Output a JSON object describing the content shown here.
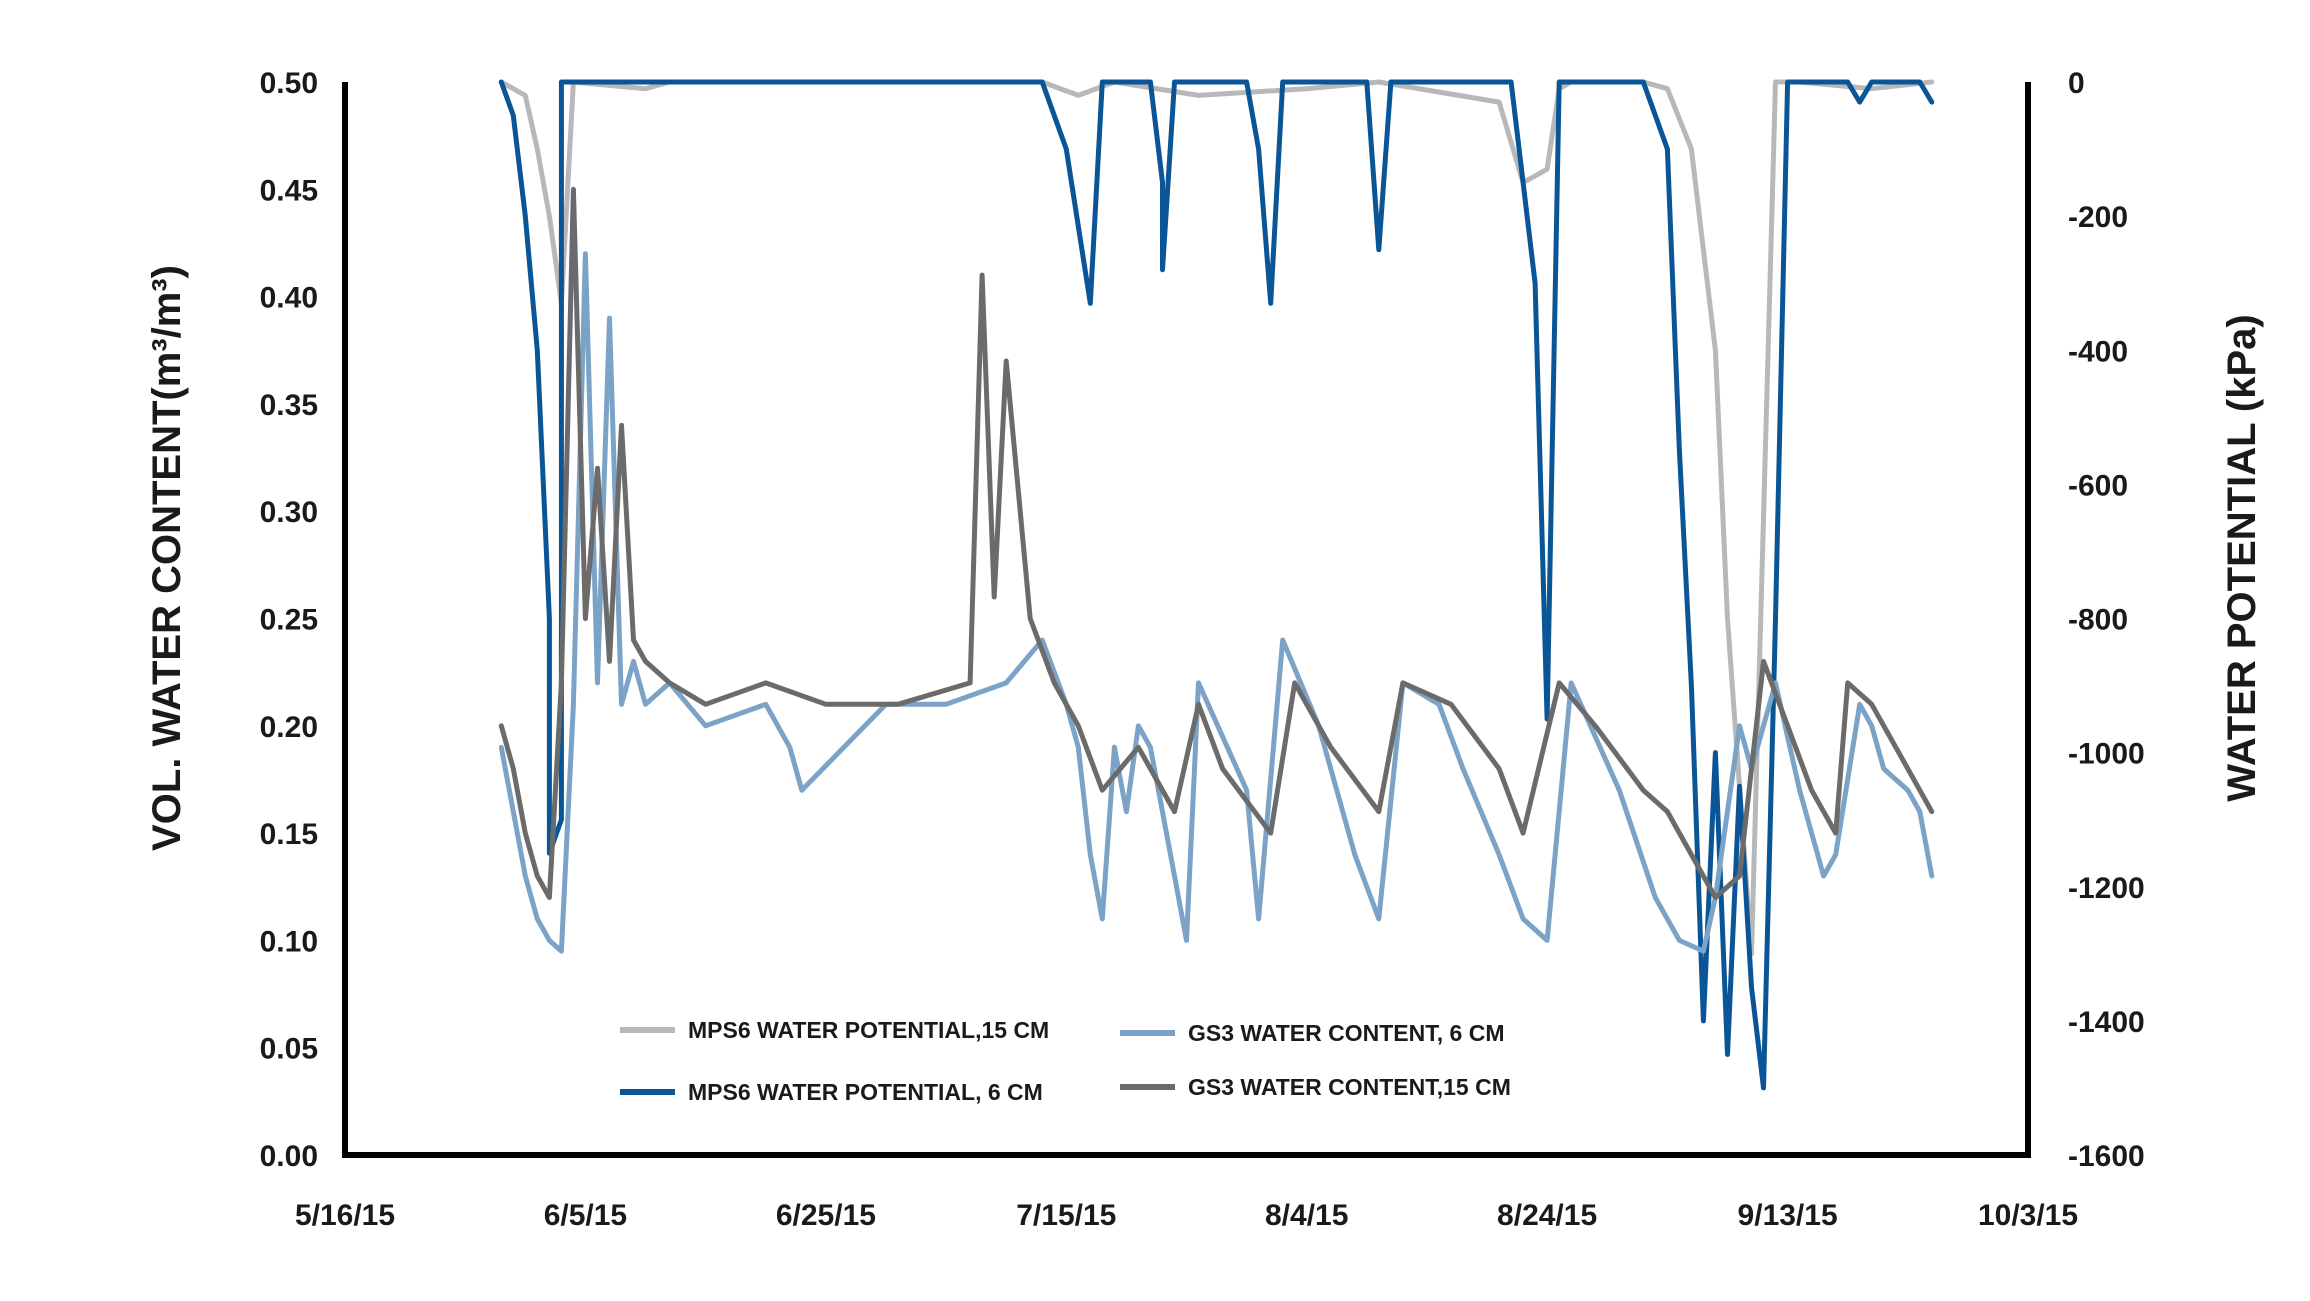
{
  "chart_data": {
    "type": "line",
    "xlabel": "",
    "ylabel": "VOL. WATER CONTENT(m³/m³)",
    "y2label": "WATER POTENTIAL (kPa)",
    "x_ticks": [
      "5/16/15",
      "6/5/15",
      "6/25/15",
      "7/15/15",
      "8/4/15",
      "8/24/15",
      "9/13/15",
      "10/3/15"
    ],
    "xlim": [
      "2015-05-16",
      "2015-10-03"
    ],
    "y_ticks": [
      "0.00",
      "0.05",
      "0.10",
      "0.15",
      "0.20",
      "0.25",
      "0.30",
      "0.35",
      "0.40",
      "0.45",
      "0.50"
    ],
    "ylim": [
      0,
      0.5
    ],
    "y2_ticks": [
      "0",
      "-200",
      "-400",
      "-600",
      "-800",
      "-1000",
      "-1200",
      "-1400",
      "-1600"
    ],
    "y2lim": [
      -1600,
      0
    ],
    "grid": false,
    "legend_position": "bottom-left",
    "series": [
      {
        "name": "MPS6 WATER POTENTIAL,15 CM",
        "axis": "right",
        "color": "#b8b8b8",
        "x": [
          "2015-05-29",
          "2015-05-31",
          "2015-06-01",
          "2015-06-02",
          "2015-06-03",
          "2015-06-04",
          "2015-06-10",
          "2015-06-12",
          "2015-07-13",
          "2015-07-16",
          "2015-07-19",
          "2015-07-26",
          "2015-08-04",
          "2015-08-10",
          "2015-08-20",
          "2015-08-22",
          "2015-08-24",
          "2015-08-25",
          "2015-08-26",
          "2015-09-01",
          "2015-09-03",
          "2015-09-05",
          "2015-09-07",
          "2015-09-08",
          "2015-09-10",
          "2015-09-12",
          "2015-09-14",
          "2015-09-20",
          "2015-09-25"
        ],
        "y": [
          0,
          -20,
          -100,
          -200,
          -330,
          0,
          -10,
          0,
          0,
          -20,
          0,
          -20,
          -10,
          0,
          -30,
          -150,
          -130,
          -10,
          0,
          0,
          -10,
          -100,
          -400,
          -800,
          -1300,
          0,
          0,
          -10,
          0
        ]
      },
      {
        "name": "MPS6 WATER POTENTIAL, 6 CM",
        "axis": "right",
        "color": "#0a5596",
        "x": [
          "2015-05-29",
          "2015-05-30",
          "2015-05-31",
          "2015-06-01",
          "2015-06-02",
          "2015-06-02",
          "2015-06-03",
          "2015-06-03",
          "2015-06-04",
          "2015-07-13",
          "2015-07-15",
          "2015-07-17",
          "2015-07-18",
          "2015-07-22",
          "2015-07-23",
          "2015-07-23",
          "2015-07-24",
          "2015-07-30",
          "2015-07-31",
          "2015-08-01",
          "2015-08-02",
          "2015-08-09",
          "2015-08-10",
          "2015-08-11",
          "2015-08-21",
          "2015-08-23",
          "2015-08-24",
          "2015-08-25",
          "2015-09-01",
          "2015-09-03",
          "2015-09-04",
          "2015-09-05",
          "2015-09-06",
          "2015-09-07",
          "2015-09-08",
          "2015-09-09",
          "2015-09-10",
          "2015-09-11",
          "2015-09-12",
          "2015-09-13",
          "2015-09-14",
          "2015-09-15",
          "2015-09-16",
          "2015-09-18",
          "2015-09-19",
          "2015-09-20",
          "2015-09-24",
          "2015-09-25"
        ],
        "y": [
          0,
          -50,
          -200,
          -400,
          -800,
          -1150,
          -1100,
          0,
          0,
          0,
          -100,
          -330,
          0,
          0,
          -150,
          -280,
          0,
          0,
          -100,
          -330,
          0,
          0,
          -250,
          0,
          0,
          -300,
          -950,
          0,
          0,
          -100,
          -550,
          -900,
          -1400,
          -1000,
          -1450,
          -1050,
          -1350,
          -1500,
          -800,
          0,
          0,
          0,
          0,
          0,
          -30,
          0,
          0,
          -30
        ]
      },
      {
        "name": "GS3 WATER CONTENT, 6 CM",
        "axis": "left",
        "color": "#7ba3c7",
        "x": [
          "2015-05-29",
          "2015-05-30",
          "2015-05-31",
          "2015-06-01",
          "2015-06-02",
          "2015-06-03",
          "2015-06-04",
          "2015-06-05",
          "2015-06-06",
          "2015-06-07",
          "2015-06-08",
          "2015-06-09",
          "2015-06-10",
          "2015-06-12",
          "2015-06-15",
          "2015-06-20",
          "2015-06-22",
          "2015-06-23",
          "2015-06-30",
          "2015-07-05",
          "2015-07-10",
          "2015-07-13",
          "2015-07-15",
          "2015-07-16",
          "2015-07-17",
          "2015-07-18",
          "2015-07-19",
          "2015-07-20",
          "2015-07-21",
          "2015-07-22",
          "2015-07-24",
          "2015-07-25",
          "2015-07-26",
          "2015-07-30",
          "2015-07-31",
          "2015-08-02",
          "2015-08-05",
          "2015-08-08",
          "2015-08-10",
          "2015-08-12",
          "2015-08-15",
          "2015-08-17",
          "2015-08-20",
          "2015-08-22",
          "2015-08-24",
          "2015-08-26",
          "2015-08-30",
          "2015-09-02",
          "2015-09-04",
          "2015-09-06",
          "2015-09-07",
          "2015-09-09",
          "2015-09-10",
          "2015-09-12",
          "2015-09-14",
          "2015-09-16",
          "2015-09-17",
          "2015-09-19",
          "2015-09-20",
          "2015-09-21",
          "2015-09-23",
          "2015-09-24",
          "2015-09-25"
        ],
        "y": [
          0.19,
          0.16,
          0.13,
          0.11,
          0.1,
          0.095,
          0.21,
          0.42,
          0.22,
          0.39,
          0.21,
          0.23,
          0.21,
          0.22,
          0.2,
          0.21,
          0.19,
          0.17,
          0.21,
          0.21,
          0.22,
          0.24,
          0.21,
          0.19,
          0.14,
          0.11,
          0.19,
          0.16,
          0.2,
          0.19,
          0.13,
          0.1,
          0.22,
          0.17,
          0.11,
          0.24,
          0.2,
          0.14,
          0.11,
          0.22,
          0.21,
          0.18,
          0.14,
          0.11,
          0.1,
          0.22,
          0.17,
          0.12,
          0.1,
          0.095,
          0.12,
          0.2,
          0.18,
          0.22,
          0.17,
          0.13,
          0.14,
          0.21,
          0.2,
          0.18,
          0.17,
          0.16,
          0.13
        ]
      },
      {
        "name": "GS3 WATER CONTENT,15 CM",
        "axis": "left",
        "color": "#6b6b6b",
        "x": [
          "2015-05-29",
          "2015-05-30",
          "2015-05-31",
          "2015-06-01",
          "2015-06-02",
          "2015-06-03",
          "2015-06-04",
          "2015-06-05",
          "2015-06-06",
          "2015-06-07",
          "2015-06-08",
          "2015-06-09",
          "2015-06-10",
          "2015-06-12",
          "2015-06-15",
          "2015-06-20",
          "2015-06-25",
          "2015-07-01",
          "2015-07-07",
          "2015-07-08",
          "2015-07-09",
          "2015-07-10",
          "2015-07-12",
          "2015-07-14",
          "2015-07-16",
          "2015-07-18",
          "2015-07-21",
          "2015-07-24",
          "2015-07-26",
          "2015-07-28",
          "2015-08-01",
          "2015-08-03",
          "2015-08-06",
          "2015-08-10",
          "2015-08-12",
          "2015-08-16",
          "2015-08-20",
          "2015-08-22",
          "2015-08-25",
          "2015-08-28",
          "2015-09-01",
          "2015-09-03",
          "2015-09-05",
          "2015-09-07",
          "2015-09-09",
          "2015-09-11",
          "2015-09-13",
          "2015-09-15",
          "2015-09-17",
          "2015-09-18",
          "2015-09-20",
          "2015-09-22",
          "2015-09-24",
          "2015-09-25"
        ],
        "y": [
          0.2,
          0.18,
          0.15,
          0.13,
          0.12,
          0.22,
          0.45,
          0.25,
          0.32,
          0.23,
          0.34,
          0.24,
          0.23,
          0.22,
          0.21,
          0.22,
          0.21,
          0.21,
          0.22,
          0.41,
          0.26,
          0.37,
          0.25,
          0.22,
          0.2,
          0.17,
          0.19,
          0.16,
          0.21,
          0.18,
          0.15,
          0.22,
          0.19,
          0.16,
          0.22,
          0.21,
          0.18,
          0.15,
          0.22,
          0.2,
          0.17,
          0.16,
          0.14,
          0.12,
          0.13,
          0.23,
          0.2,
          0.17,
          0.15,
          0.22,
          0.21,
          0.19,
          0.17,
          0.16
        ]
      }
    ]
  }
}
